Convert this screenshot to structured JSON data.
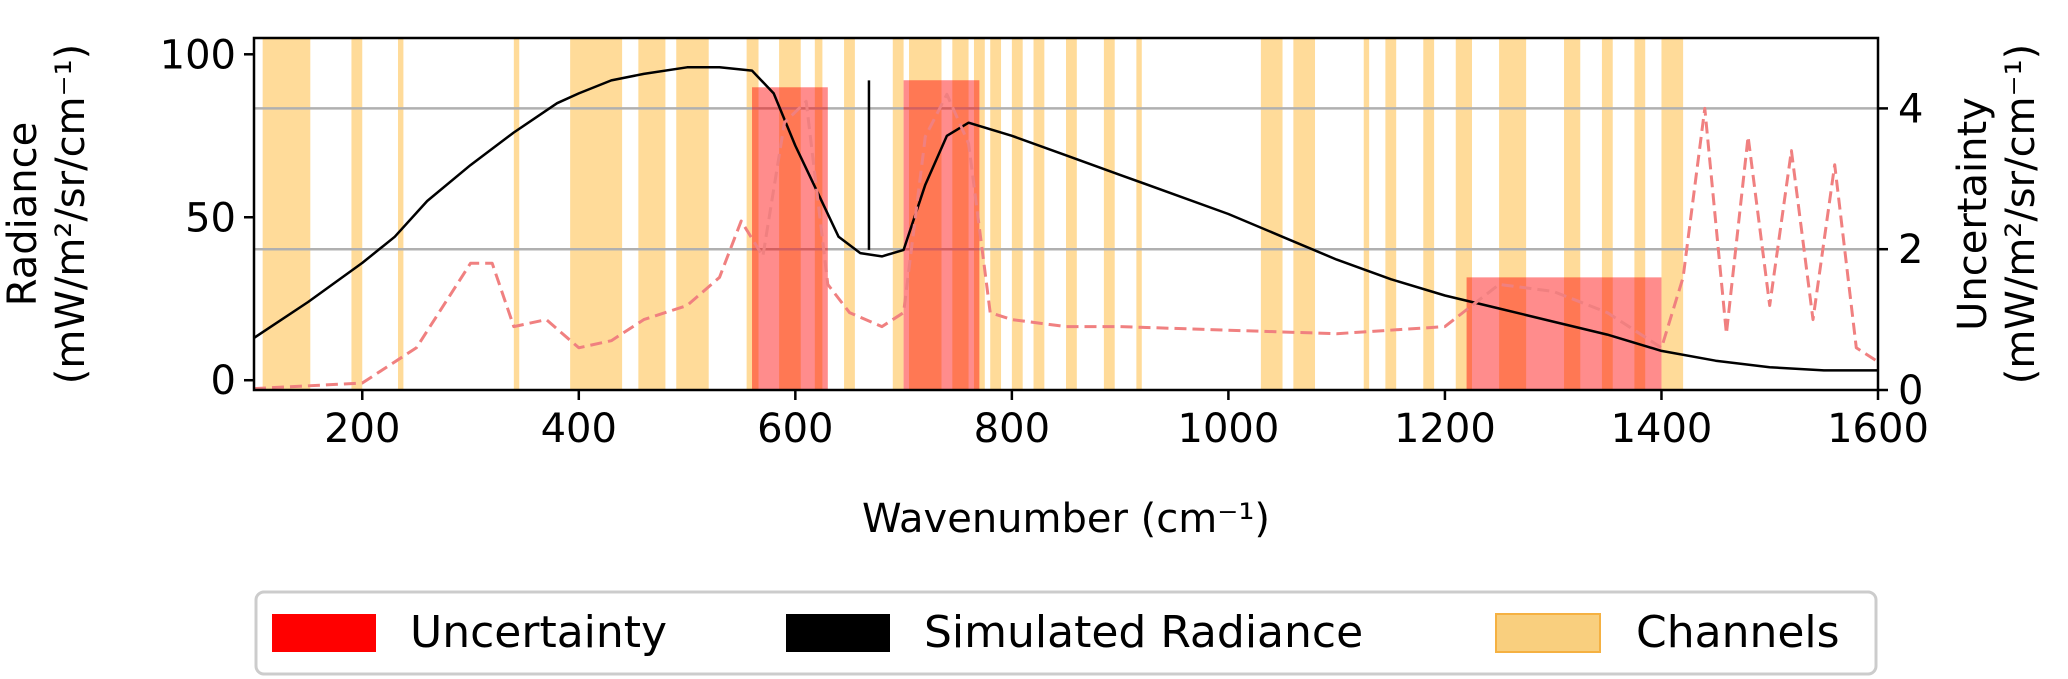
{
  "chart_data": {
    "type": "line",
    "title": "",
    "xlabel": "Wavenumber (cm⁻¹)",
    "ylabel_left_line1": "Radiance",
    "ylabel_left_line2": "(mW/m²/sr/cm⁻¹)",
    "ylabel_right_line1": "Uncertainty",
    "ylabel_right_line2": "(mW/m²/sr/cm⁻¹)",
    "xlim": [
      100,
      1600
    ],
    "ylim_left": [
      -3,
      105
    ],
    "ylim_right": [
      0,
      5
    ],
    "xticks": [
      200,
      400,
      600,
      800,
      1000,
      1200,
      1400,
      1600
    ],
    "xtick_labels": [
      "200",
      "400",
      "600",
      "800",
      "1000",
      "1200",
      "1400",
      "1600"
    ],
    "yticks_left": [
      0,
      50,
      100
    ],
    "ytick_labels_left": [
      "0",
      "50",
      "100"
    ],
    "yticks_right": [
      0,
      2,
      4
    ],
    "ytick_labels_right": [
      "0",
      "2",
      "4"
    ],
    "grid_right_y": [
      2,
      4
    ],
    "legend_position": "bottom-center",
    "colors": {
      "radiance": "#000000",
      "uncertainty_fill": "#ff0000",
      "uncertainty_line": "#f08080",
      "channels": "#ffa500",
      "grid": "#b0b0b0"
    },
    "series": [
      {
        "name": "Simulated Radiance",
        "axis": "left",
        "x": [
          100,
          150,
          200,
          230,
          260,
          300,
          340,
          380,
          400,
          430,
          460,
          500,
          530,
          560,
          580,
          600,
          620,
          640,
          660,
          680,
          700,
          720,
          740,
          760,
          800,
          850,
          900,
          950,
          1000,
          1050,
          1100,
          1150,
          1200,
          1250,
          1300,
          1350,
          1400,
          1450,
          1500,
          1550,
          1600
        ],
        "y": [
          13,
          24,
          36,
          44,
          55,
          66,
          76,
          85,
          88,
          92,
          94,
          96,
          96,
          95,
          88,
          72,
          58,
          44,
          39,
          38,
          40,
          60,
          75,
          79,
          75,
          69,
          63,
          57,
          51,
          44,
          37,
          31,
          26,
          22,
          18,
          14,
          9,
          6,
          4,
          3,
          3
        ]
      },
      {
        "name": "Uncertainty",
        "axis": "right",
        "x": [
          100,
          200,
          250,
          300,
          320,
          340,
          370,
          400,
          430,
          460,
          500,
          530,
          550,
          570,
          590,
          610,
          630,
          650,
          680,
          700,
          720,
          740,
          760,
          780,
          800,
          850,
          900,
          1000,
          1100,
          1200,
          1250,
          1300,
          1350,
          1400,
          1420,
          1440,
          1460,
          1480,
          1500,
          1520,
          1540,
          1560,
          1580,
          1600
        ],
        "y": [
          0.02,
          0.1,
          0.6,
          1.8,
          1.8,
          0.9,
          1.0,
          0.6,
          0.7,
          1.0,
          1.2,
          1.6,
          2.4,
          1.9,
          3.8,
          4.1,
          1.5,
          1.1,
          0.9,
          1.1,
          3.6,
          4.2,
          3.5,
          1.1,
          1.0,
          0.9,
          0.9,
          0.85,
          0.8,
          0.9,
          1.5,
          1.4,
          1.1,
          0.6,
          1.6,
          4.0,
          0.8,
          3.6,
          1.2,
          3.4,
          1.0,
          3.2,
          0.6,
          0.4
        ]
      }
    ],
    "uncertainty_fill_bands": [
      {
        "x_start": 560,
        "x_end": 630,
        "y_max": 4.3
      },
      {
        "x_start": 700,
        "x_end": 770,
        "y_max": 4.4
      },
      {
        "x_start": 1220,
        "x_end": 1400,
        "y_max": 1.6
      }
    ],
    "absorption_line_x": 668,
    "channel_ranges": [
      [
        108,
        152
      ],
      [
        190,
        200
      ],
      [
        233,
        238
      ],
      [
        340,
        345
      ],
      [
        392,
        440
      ],
      [
        455,
        480
      ],
      [
        490,
        520
      ],
      [
        555,
        566
      ],
      [
        585,
        605
      ],
      [
        618,
        625
      ],
      [
        645,
        655
      ],
      [
        690,
        700
      ],
      [
        705,
        735
      ],
      [
        745,
        760
      ],
      [
        765,
        775
      ],
      [
        780,
        790
      ],
      [
        800,
        810
      ],
      [
        820,
        830
      ],
      [
        850,
        860
      ],
      [
        885,
        895
      ],
      [
        915,
        920
      ],
      [
        1030,
        1050
      ],
      [
        1060,
        1080
      ],
      [
        1125,
        1130
      ],
      [
        1145,
        1155
      ],
      [
        1180,
        1190
      ],
      [
        1210,
        1225
      ],
      [
        1250,
        1275
      ],
      [
        1310,
        1325
      ],
      [
        1345,
        1355
      ],
      [
        1375,
        1385
      ],
      [
        1400,
        1420
      ]
    ],
    "legend": [
      {
        "label": "Uncertainty",
        "swatch": "#ff0000"
      },
      {
        "label": "Simulated Radiance",
        "swatch": "#000000"
      },
      {
        "label": "Channels",
        "swatch": "#f9cf7e"
      }
    ]
  }
}
